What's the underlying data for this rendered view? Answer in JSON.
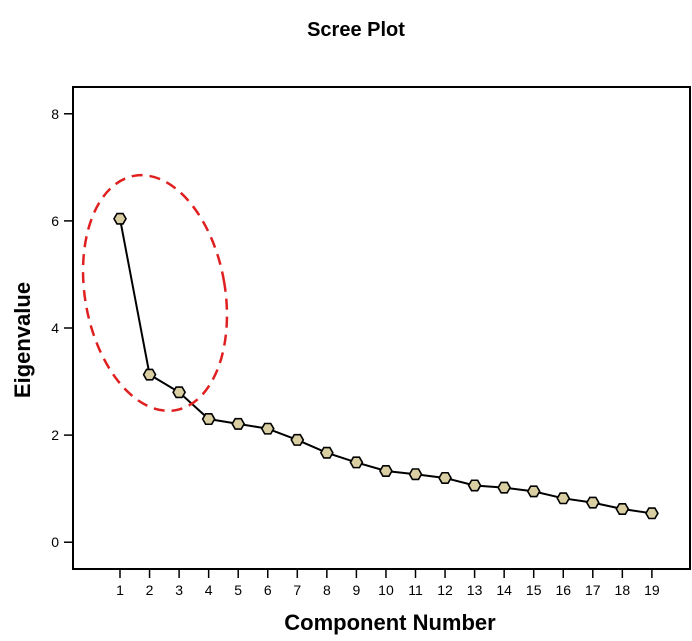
{
  "chart_data": {
    "type": "line",
    "title": "Scree Plot",
    "xlabel": "Component Number",
    "ylabel": "Eigenvalue",
    "x": [
      1,
      2,
      3,
      4,
      5,
      6,
      7,
      8,
      9,
      10,
      11,
      12,
      13,
      14,
      15,
      16,
      17,
      18,
      19
    ],
    "x_tick_labels": [
      "1",
      "2",
      "3",
      "4",
      "5",
      "6",
      "7",
      "8",
      "9",
      "10",
      "11",
      "12",
      "13",
      "14",
      "15",
      "16",
      "17",
      "18",
      "19"
    ],
    "series": [
      {
        "values": [
          6.04,
          3.13,
          2.8,
          2.3,
          2.21,
          2.12,
          1.91,
          1.67,
          1.49,
          1.33,
          1.27,
          1.2,
          1.06,
          1.02,
          0.95,
          0.82,
          0.74,
          0.62,
          0.54
        ],
        "line_color": "#000000",
        "marker_color": "#d9cfa3"
      }
    ],
    "ylim": [
      -0.5,
      8.5
    ],
    "y_ticks": [
      0,
      2,
      4,
      6,
      8
    ],
    "y_tick_labels": [
      "0",
      "2",
      "4",
      "6",
      "8"
    ],
    "grid": false,
    "legend": "none",
    "annotation": {
      "shape": "ellipse",
      "style": "dashed",
      "color": "#e02020",
      "encloses_components": [
        1,
        2,
        3
      ]
    }
  }
}
